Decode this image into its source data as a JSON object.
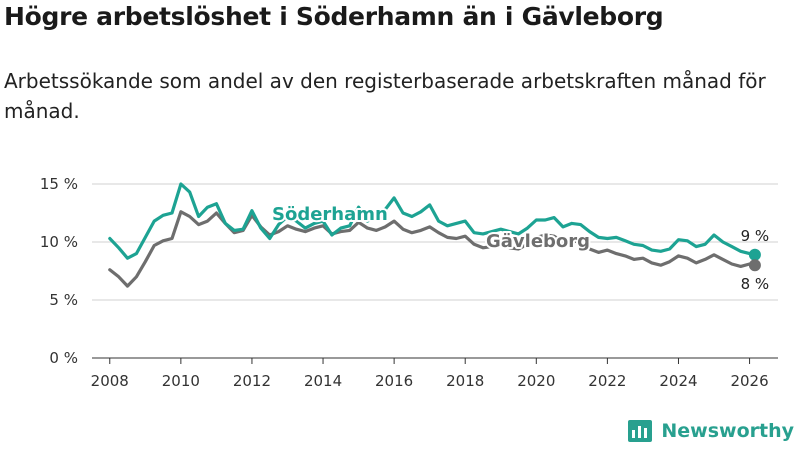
{
  "title": "Högre arbetslöshet i Söderhamn än i Gävleborg",
  "subtitle": "Arbetssökande som andel av den registerbaserade arbetskraften månad för månad.",
  "brand": "Newsworthy",
  "colors": {
    "soderhamn": "#1da393",
    "gavleborg": "#6e6e6e",
    "grid": "#d9d9d9",
    "brand": "#28a08f"
  },
  "chart_data": {
    "type": "line",
    "title": "Högre arbetslöshet i Söderhamn än i Gävleborg",
    "xlabel": "",
    "ylabel": "",
    "xlim": [
      2007.5,
      2026.8
    ],
    "ylim": [
      0,
      15
    ],
    "yticks": [
      0,
      5,
      10,
      15
    ],
    "ytick_labels": [
      "0 %",
      "5 %",
      "10 %",
      "15 %"
    ],
    "xticks": [
      2008,
      2010,
      2012,
      2014,
      2016,
      2018,
      2020,
      2022,
      2024,
      2026
    ],
    "xtick_labels": [
      "2008",
      "2010",
      "2012",
      "2014",
      "2016",
      "2018",
      "2020",
      "2022",
      "2024",
      "2026"
    ],
    "grid": true,
    "series": [
      {
        "name": "Söderhamn",
        "end_label": "9 %",
        "points": [
          [
            2008.0,
            10.3
          ],
          [
            2008.25,
            9.5
          ],
          [
            2008.5,
            8.6
          ],
          [
            2008.75,
            9.0
          ],
          [
            2009.0,
            10.4
          ],
          [
            2009.25,
            11.8
          ],
          [
            2009.5,
            12.3
          ],
          [
            2009.75,
            12.5
          ],
          [
            2010.0,
            15.0
          ],
          [
            2010.25,
            14.3
          ],
          [
            2010.5,
            12.2
          ],
          [
            2010.75,
            13.0
          ],
          [
            2011.0,
            13.3
          ],
          [
            2011.25,
            11.6
          ],
          [
            2011.5,
            11.0
          ],
          [
            2011.75,
            11.1
          ],
          [
            2012.0,
            12.7
          ],
          [
            2012.25,
            11.2
          ],
          [
            2012.5,
            10.3
          ],
          [
            2012.75,
            11.5
          ],
          [
            2013.0,
            12.2
          ],
          [
            2013.25,
            11.8
          ],
          [
            2013.5,
            11.2
          ],
          [
            2013.75,
            11.6
          ],
          [
            2014.0,
            11.8
          ],
          [
            2014.25,
            10.6
          ],
          [
            2014.5,
            11.2
          ],
          [
            2014.75,
            11.4
          ],
          [
            2015.0,
            13.0
          ],
          [
            2015.25,
            11.8
          ],
          [
            2015.5,
            12.2
          ],
          [
            2015.75,
            12.8
          ],
          [
            2016.0,
            13.8
          ],
          [
            2016.25,
            12.5
          ],
          [
            2016.5,
            12.2
          ],
          [
            2016.75,
            12.6
          ],
          [
            2017.0,
            13.2
          ],
          [
            2017.25,
            11.8
          ],
          [
            2017.5,
            11.4
          ],
          [
            2017.75,
            11.6
          ],
          [
            2018.0,
            11.8
          ],
          [
            2018.25,
            10.8
          ],
          [
            2018.5,
            10.7
          ],
          [
            2018.75,
            10.9
          ],
          [
            2019.0,
            11.1
          ],
          [
            2019.25,
            10.9
          ],
          [
            2019.5,
            10.7
          ],
          [
            2019.75,
            11.2
          ],
          [
            2020.0,
            11.9
          ],
          [
            2020.25,
            11.9
          ],
          [
            2020.5,
            12.1
          ],
          [
            2020.75,
            11.3
          ],
          [
            2021.0,
            11.6
          ],
          [
            2021.25,
            11.5
          ],
          [
            2021.5,
            10.9
          ],
          [
            2021.75,
            10.4
          ],
          [
            2022.0,
            10.3
          ],
          [
            2022.25,
            10.4
          ],
          [
            2022.5,
            10.1
          ],
          [
            2022.75,
            9.8
          ],
          [
            2023.0,
            9.7
          ],
          [
            2023.25,
            9.3
          ],
          [
            2023.5,
            9.2
          ],
          [
            2023.75,
            9.4
          ],
          [
            2024.0,
            10.2
          ],
          [
            2024.25,
            10.1
          ],
          [
            2024.5,
            9.6
          ],
          [
            2024.75,
            9.8
          ],
          [
            2025.0,
            10.6
          ],
          [
            2025.25,
            10.0
          ],
          [
            2025.5,
            9.6
          ],
          [
            2025.75,
            9.2
          ],
          [
            2026.0,
            9.0
          ],
          [
            2026.15,
            8.9
          ]
        ]
      },
      {
        "name": "Gävleborg",
        "end_label": "8 %",
        "points": [
          [
            2008.0,
            7.6
          ],
          [
            2008.25,
            7.0
          ],
          [
            2008.5,
            6.2
          ],
          [
            2008.75,
            7.0
          ],
          [
            2009.0,
            8.3
          ],
          [
            2009.25,
            9.7
          ],
          [
            2009.5,
            10.1
          ],
          [
            2009.75,
            10.3
          ],
          [
            2010.0,
            12.6
          ],
          [
            2010.25,
            12.2
          ],
          [
            2010.5,
            11.5
          ],
          [
            2010.75,
            11.8
          ],
          [
            2011.0,
            12.5
          ],
          [
            2011.25,
            11.6
          ],
          [
            2011.5,
            10.8
          ],
          [
            2011.75,
            11.0
          ],
          [
            2012.0,
            12.3
          ],
          [
            2012.25,
            11.3
          ],
          [
            2012.5,
            10.6
          ],
          [
            2012.75,
            10.9
          ],
          [
            2013.0,
            11.4
          ],
          [
            2013.25,
            11.1
          ],
          [
            2013.5,
            10.9
          ],
          [
            2013.75,
            11.2
          ],
          [
            2014.0,
            11.4
          ],
          [
            2014.25,
            10.7
          ],
          [
            2014.5,
            10.9
          ],
          [
            2014.75,
            11.0
          ],
          [
            2015.0,
            11.7
          ],
          [
            2015.25,
            11.2
          ],
          [
            2015.5,
            11.0
          ],
          [
            2015.75,
            11.3
          ],
          [
            2016.0,
            11.8
          ],
          [
            2016.25,
            11.1
          ],
          [
            2016.5,
            10.8
          ],
          [
            2016.75,
            11.0
          ],
          [
            2017.0,
            11.3
          ],
          [
            2017.25,
            10.8
          ],
          [
            2017.5,
            10.4
          ],
          [
            2017.75,
            10.3
          ],
          [
            2018.0,
            10.5
          ],
          [
            2018.25,
            9.8
          ],
          [
            2018.5,
            9.5
          ],
          [
            2018.75,
            9.6
          ],
          [
            2019.0,
            9.8
          ],
          [
            2019.25,
            9.5
          ],
          [
            2019.5,
            9.4
          ],
          [
            2019.75,
            9.8
          ],
          [
            2020.0,
            10.4
          ],
          [
            2020.25,
            10.6
          ],
          [
            2020.5,
            10.5
          ],
          [
            2020.75,
            10.0
          ],
          [
            2021.0,
            10.2
          ],
          [
            2021.25,
            9.9
          ],
          [
            2021.5,
            9.4
          ],
          [
            2021.75,
            9.1
          ],
          [
            2022.0,
            9.3
          ],
          [
            2022.25,
            9.0
          ],
          [
            2022.5,
            8.8
          ],
          [
            2022.75,
            8.5
          ],
          [
            2023.0,
            8.6
          ],
          [
            2023.25,
            8.2
          ],
          [
            2023.5,
            8.0
          ],
          [
            2023.75,
            8.3
          ],
          [
            2024.0,
            8.8
          ],
          [
            2024.25,
            8.6
          ],
          [
            2024.5,
            8.2
          ],
          [
            2024.75,
            8.5
          ],
          [
            2025.0,
            8.9
          ],
          [
            2025.25,
            8.5
          ],
          [
            2025.5,
            8.1
          ],
          [
            2025.75,
            7.9
          ],
          [
            2026.0,
            8.1
          ],
          [
            2026.15,
            8.0
          ]
        ]
      }
    ]
  }
}
